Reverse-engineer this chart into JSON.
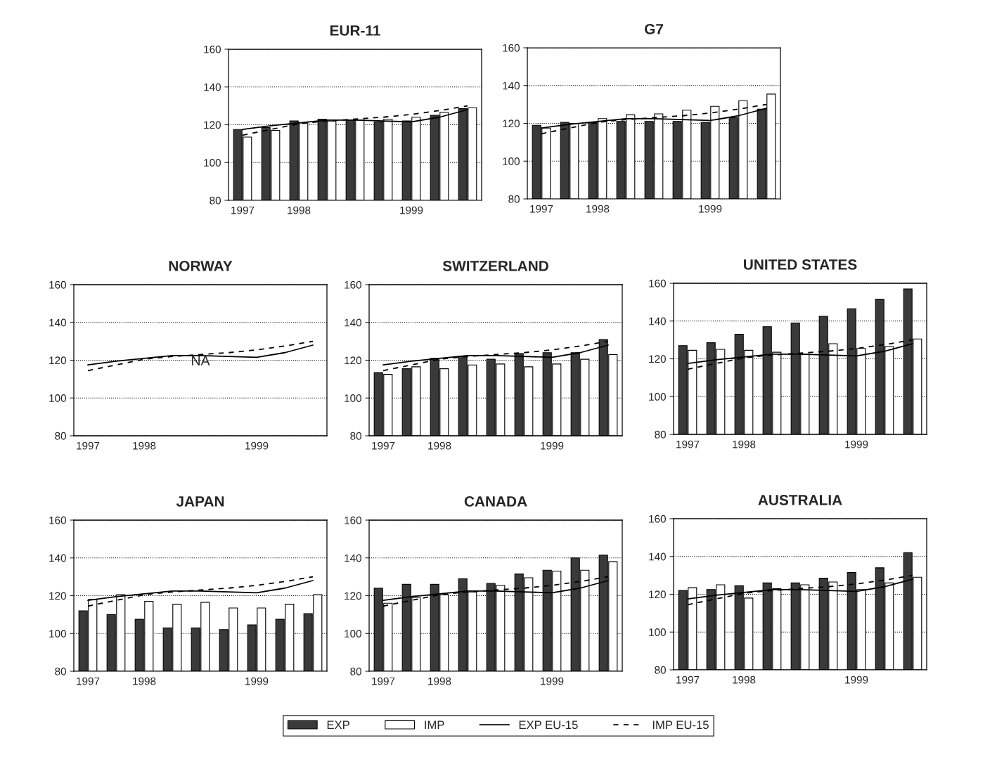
{
  "chart_data": [
    {
      "type": "bar",
      "title": "EUR-11",
      "categories": [
        "1997",
        null,
        "1998",
        null,
        null,
        null,
        "1999",
        null,
        null
      ],
      "ylim": [
        80,
        160
      ],
      "yticks": [
        80,
        100,
        120,
        140,
        160
      ],
      "grid": "y",
      "legend": "bottom",
      "series": [
        {
          "name": "EXP",
          "color": "#3a3a3a",
          "values": [
            117.5,
            118.5,
            122,
            123,
            122.5,
            121.5,
            122,
            125,
            128.5
          ]
        },
        {
          "name": "IMP",
          "color": "#ffffff",
          "values": [
            113.5,
            117,
            121,
            122,
            122.5,
            123,
            124,
            126.5,
            129
          ]
        },
        {
          "name": "EXP EU-15",
          "type": "line",
          "color": "#000000",
          "line_style": "solid",
          "values": [
            117.5,
            119.5,
            121,
            122.5,
            122.5,
            122,
            121.5,
            124,
            128
          ]
        },
        {
          "name": "IMP EU-15",
          "type": "line",
          "color": "#000000",
          "line_style": "dashed",
          "values": [
            114.5,
            117.5,
            120.5,
            122,
            123,
            124,
            125.5,
            127.5,
            130
          ]
        }
      ]
    },
    {
      "type": "bar",
      "title": "G7",
      "categories": [
        "1997",
        null,
        "1998",
        null,
        null,
        null,
        "1999",
        null,
        null
      ],
      "ylim": [
        80,
        160
      ],
      "yticks": [
        80,
        100,
        120,
        140,
        160
      ],
      "grid": "y",
      "series": [
        {
          "color": "#3a3a3a",
          "values": [
            119,
            120.5,
            120.5,
            121,
            121,
            121,
            120.5,
            123,
            127.5
          ]
        },
        {
          "color": "#ffffff",
          "values": [
            117.5,
            120,
            122.5,
            124.5,
            125,
            127,
            129,
            132,
            135.5
          ]
        },
        {
          "type": "line",
          "color": "#000000",
          "line_style": "solid",
          "values": [
            117.5,
            119.5,
            121,
            122.5,
            122.5,
            122,
            121.5,
            124,
            128
          ]
        },
        {
          "type": "line",
          "color": "#000000",
          "line_style": "dashed",
          "values": [
            114.5,
            117.5,
            120.5,
            122,
            123,
            124,
            125.5,
            127.5,
            130
          ]
        }
      ]
    },
    {
      "type": "line",
      "title": "NORWAY",
      "categories": [
        "1997",
        null,
        "1998",
        null,
        null,
        null,
        "1999",
        null,
        null
      ],
      "ylim": [
        80,
        160
      ],
      "yticks": [
        80,
        100,
        120,
        140,
        160
      ],
      "grid": "y",
      "annotations": [
        "NA"
      ],
      "series": [
        {
          "color": "#000000",
          "line_style": "solid",
          "values": [
            117.5,
            119.5,
            121,
            122.5,
            122.5,
            122,
            121.5,
            124,
            128
          ]
        },
        {
          "color": "#000000",
          "line_style": "dashed",
          "values": [
            114.5,
            117.5,
            120.5,
            122,
            123,
            124,
            125.5,
            127.5,
            130
          ]
        }
      ]
    },
    {
      "type": "bar",
      "title": "SWITZERLAND",
      "categories": [
        "1997",
        null,
        "1998",
        null,
        null,
        null,
        "1999",
        null,
        null
      ],
      "ylim": [
        80,
        160
      ],
      "yticks": [
        80,
        100,
        120,
        140,
        160
      ],
      "grid": "y",
      "series": [
        {
          "color": "#3a3a3a",
          "values": [
            113.5,
            115.5,
            121,
            122,
            120.5,
            123.5,
            124,
            124,
            131
          ]
        },
        {
          "color": "#ffffff",
          "values": [
            112.5,
            116.5,
            115.5,
            117.5,
            118,
            116.5,
            118,
            120.5,
            123
          ]
        },
        {
          "type": "line",
          "color": "#000000",
          "line_style": "solid",
          "values": [
            117.5,
            119.5,
            121,
            122.5,
            122.5,
            122,
            121.5,
            124,
            128
          ]
        },
        {
          "type": "line",
          "color": "#000000",
          "line_style": "dashed",
          "values": [
            114.5,
            117.5,
            120.5,
            122,
            123,
            124,
            125.5,
            127.5,
            130
          ]
        }
      ]
    },
    {
      "type": "bar",
      "title": "UNITED STATES",
      "categories": [
        "1997",
        null,
        "1998",
        null,
        null,
        null,
        "1999",
        null,
        null
      ],
      "ylim": [
        80,
        160
      ],
      "yticks": [
        80,
        100,
        120,
        140,
        160
      ],
      "grid": "y",
      "series": [
        {
          "color": "#3a3a3a",
          "values": [
            127,
            128.5,
            133,
            137,
            139,
            142.5,
            146.5,
            151.5,
            157
          ]
        },
        {
          "color": "#ffffff",
          "values": [
            124.5,
            125,
            124.5,
            123.5,
            122.5,
            128,
            125.5,
            126.5,
            130.5
          ]
        },
        {
          "type": "line",
          "color": "#000000",
          "line_style": "solid",
          "values": [
            117.5,
            119.5,
            121,
            122.5,
            122.5,
            122,
            121.5,
            124,
            128
          ]
        },
        {
          "type": "line",
          "color": "#000000",
          "line_style": "dashed",
          "values": [
            114.5,
            117.5,
            120.5,
            122,
            123,
            124,
            125.5,
            127.5,
            130
          ]
        }
      ]
    },
    {
      "type": "bar",
      "title": "JAPAN",
      "categories": [
        "1997",
        null,
        "1998",
        null,
        null,
        null,
        "1999",
        null,
        null
      ],
      "ylim": [
        80,
        160
      ],
      "yticks": [
        80,
        100,
        120,
        140,
        160
      ],
      "grid": "y",
      "series": [
        {
          "color": "#3a3a3a",
          "values": [
            112,
            110,
            107.5,
            103,
            103,
            102,
            104.5,
            107.5,
            110.5
          ]
        },
        {
          "color": "#ffffff",
          "values": [
            118,
            120.5,
            117,
            115.5,
            116.5,
            113.5,
            113.5,
            115.5,
            120.5
          ]
        },
        {
          "type": "line",
          "color": "#000000",
          "line_style": "solid",
          "values": [
            117.5,
            119.5,
            121,
            122.5,
            122.5,
            122,
            121.5,
            124,
            128
          ]
        },
        {
          "type": "line",
          "color": "#000000",
          "line_style": "dashed",
          "values": [
            114.5,
            117.5,
            120.5,
            122,
            123,
            124,
            125.5,
            127.5,
            130
          ]
        }
      ]
    },
    {
      "type": "bar",
      "title": "CANADA",
      "categories": [
        "1997",
        null,
        "1998",
        null,
        null,
        null,
        "1999",
        null,
        null
      ],
      "ylim": [
        80,
        160
      ],
      "yticks": [
        80,
        100,
        120,
        140,
        160
      ],
      "grid": "y",
      "series": [
        {
          "color": "#3a3a3a",
          "values": [
            124,
            126,
            126,
            129,
            126.5,
            131.5,
            133.5,
            140,
            141.5
          ]
        },
        {
          "color": "#ffffff",
          "values": [
            116,
            119,
            120.5,
            122,
            125.5,
            129.5,
            133,
            133.5,
            138
          ]
        },
        {
          "type": "line",
          "color": "#000000",
          "line_style": "solid",
          "values": [
            117.5,
            119.5,
            121,
            122.5,
            122.5,
            122,
            121.5,
            124,
            128
          ]
        },
        {
          "type": "line",
          "color": "#000000",
          "line_style": "dashed",
          "values": [
            114.5,
            117.5,
            120.5,
            122,
            123,
            124,
            125.5,
            127.5,
            130
          ]
        }
      ]
    },
    {
      "type": "bar",
      "title": "AUSTRALIA",
      "categories": [
        "1997",
        null,
        "1998",
        null,
        null,
        null,
        "1999",
        null,
        null
      ],
      "ylim": [
        80,
        160
      ],
      "yticks": [
        80,
        100,
        120,
        140,
        160
      ],
      "grid": "y",
      "series": [
        {
          "color": "#3a3a3a",
          "values": [
            122,
            122.5,
            124.5,
            126,
            126,
            128.5,
            131.5,
            134,
            142
          ]
        },
        {
          "color": "#ffffff",
          "values": [
            123.5,
            125,
            118,
            123,
            125,
            126.5,
            122.5,
            126,
            129
          ]
        },
        {
          "type": "line",
          "color": "#000000",
          "line_style": "solid",
          "values": [
            117.5,
            119.5,
            121,
            122.5,
            122.5,
            122,
            121.5,
            124,
            128
          ]
        },
        {
          "type": "line",
          "color": "#000000",
          "line_style": "dashed",
          "values": [
            114.5,
            117.5,
            120.5,
            122,
            123,
            124,
            125.5,
            127.5,
            130
          ]
        }
      ]
    }
  ]
}
